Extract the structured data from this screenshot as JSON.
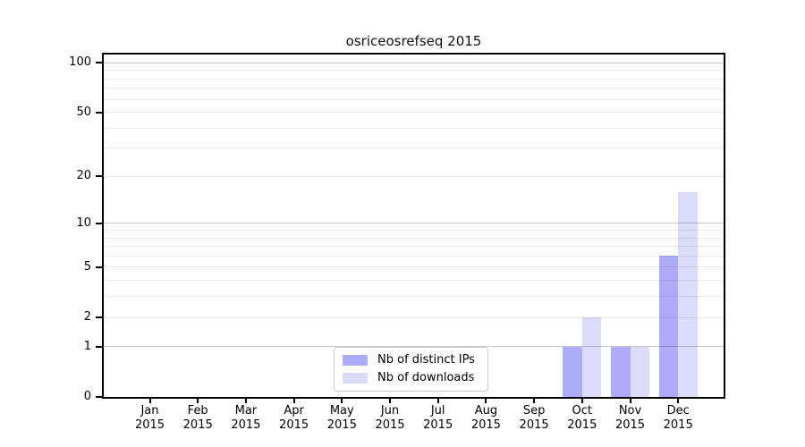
{
  "chart_data": {
    "type": "bar",
    "title": "osriceosrefseq 2015",
    "categories": [
      "Jan",
      "Feb",
      "Mar",
      "Apr",
      "May",
      "Jun",
      "Jul",
      "Aug",
      "Sep",
      "Oct",
      "Nov",
      "Dec"
    ],
    "x_tick_year": "2015",
    "series": [
      {
        "name": "Nb of distinct IPs",
        "color": "#acacf8",
        "values": [
          0,
          0,
          0,
          0,
          0,
          0,
          0,
          0,
          0,
          1,
          1,
          6
        ]
      },
      {
        "name": "Nb of downloads",
        "color": "#dbdbfa",
        "values": [
          0,
          0,
          0,
          0,
          0,
          0,
          0,
          0,
          0,
          2,
          1,
          16
        ]
      }
    ],
    "yscale": "log1p",
    "ylim": [
      0,
      113
    ],
    "y_tick_values": [
      0,
      1,
      2,
      5,
      10,
      20,
      50,
      100
    ],
    "y_major_gridlines": [
      1,
      10,
      100
    ],
    "y_minor_gridlines": [
      2,
      3,
      4,
      5,
      6,
      7,
      8,
      9,
      20,
      30,
      40,
      50,
      60,
      70,
      80,
      90
    ],
    "grid": true,
    "legend_position": "lower center",
    "colors": {
      "major_grid": "#c8c8c8",
      "minor_grid": "#ebebeb",
      "axis": "#000000",
      "background": "#ffffff"
    }
  }
}
